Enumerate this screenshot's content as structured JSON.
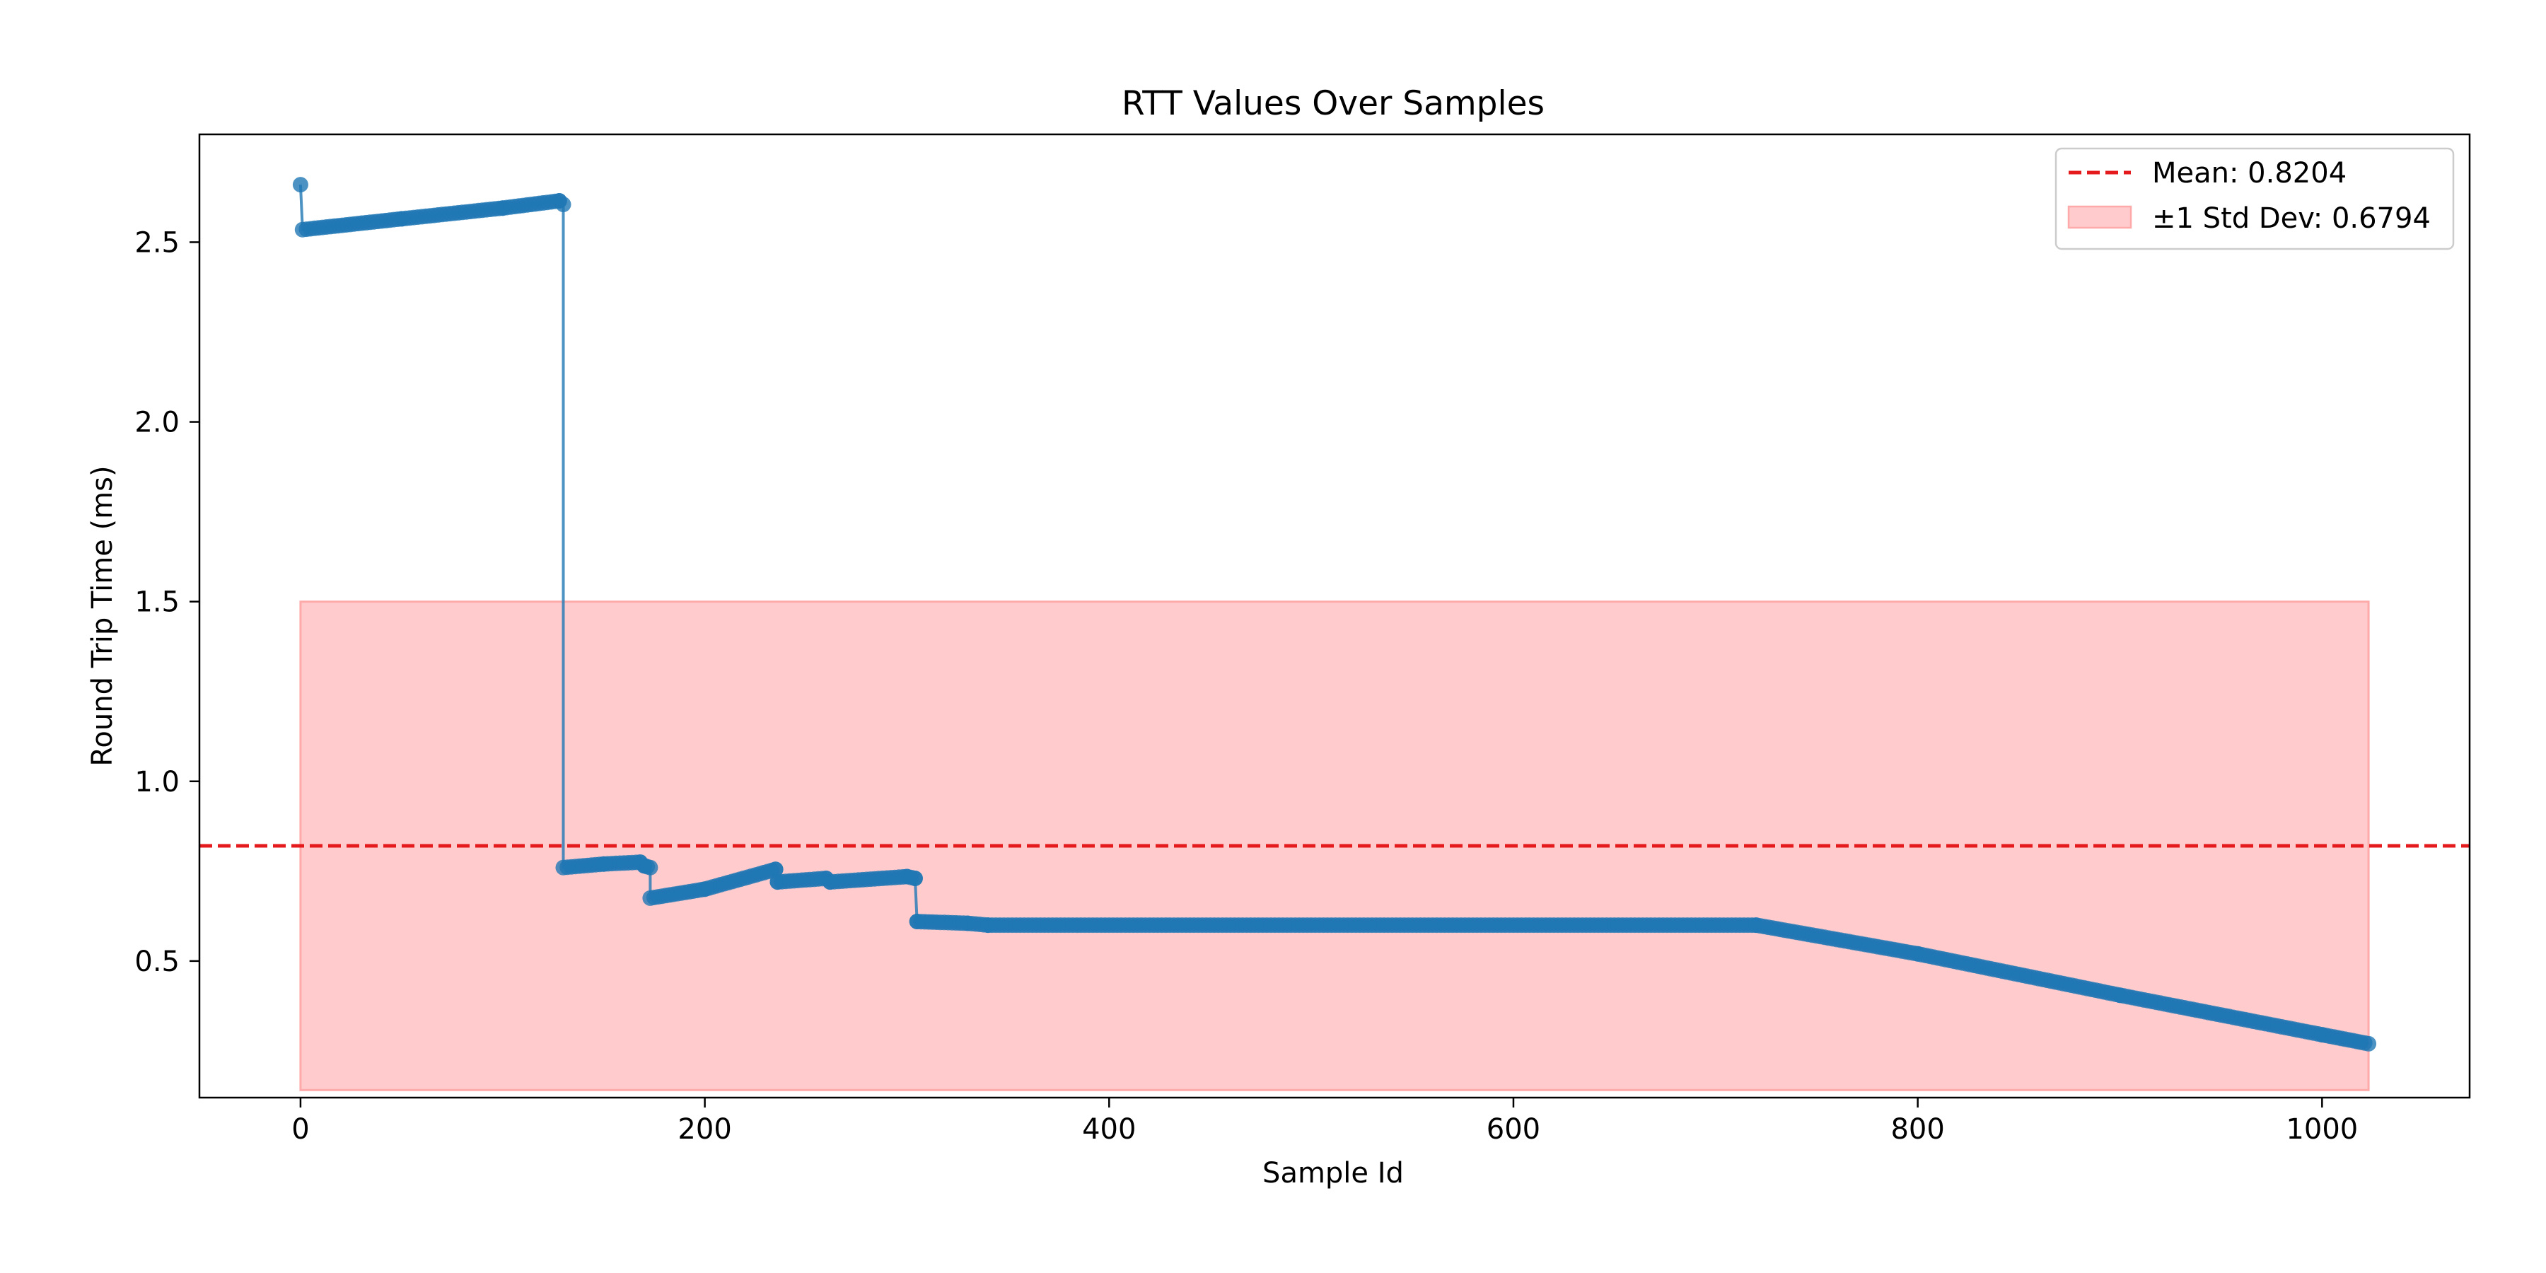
{
  "chart_data": {
    "type": "line",
    "title": "RTT Values Over Samples",
    "xlabel": "Sample Id",
    "ylabel": "Round Trip Time (ms)",
    "xlim": [
      -50,
      1073
    ],
    "ylim": [
      0.12,
      2.8
    ],
    "xticks": [
      0,
      200,
      400,
      600,
      800,
      1000
    ],
    "yticks": [
      0.5,
      1.0,
      1.5,
      2.0,
      2.5
    ],
    "grid": false,
    "legend_position": "top-right",
    "series": [
      {
        "type": "line-with-markers",
        "color": "#1f77b4",
        "points": [
          [
            0,
            2.66
          ],
          [
            1,
            2.535
          ],
          [
            50,
            2.565
          ],
          [
            100,
            2.595
          ],
          [
            128,
            2.615
          ],
          [
            130,
            2.605
          ],
          [
            130,
            0.76
          ],
          [
            150,
            0.77
          ],
          [
            168,
            0.775
          ],
          [
            170,
            0.765
          ],
          [
            173,
            0.76
          ],
          [
            173,
            0.675
          ],
          [
            200,
            0.7
          ],
          [
            235,
            0.755
          ],
          [
            236,
            0.72
          ],
          [
            260,
            0.73
          ],
          [
            262,
            0.72
          ],
          [
            300,
            0.735
          ],
          [
            304,
            0.73
          ],
          [
            305,
            0.61
          ],
          [
            330,
            0.605
          ],
          [
            340,
            0.6
          ],
          [
            720,
            0.6
          ],
          [
            800,
            0.52
          ],
          [
            900,
            0.405
          ],
          [
            1000,
            0.295
          ],
          [
            1023,
            0.27
          ]
        ]
      }
    ],
    "mean_line": {
      "value": 0.8204,
      "color": "#e41a1c",
      "label": "Mean: 0.8204"
    },
    "std_band": {
      "low": 0.141,
      "high": 1.4998,
      "x_start": 0,
      "x_end": 1023,
      "color": "#ffcbcc",
      "label": "±1 Std Dev: 0.6794"
    }
  }
}
